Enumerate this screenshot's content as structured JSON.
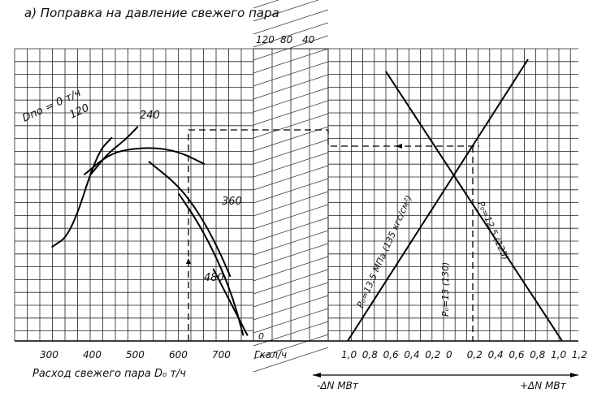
{
  "chart_data": {
    "type": "line",
    "title": "а) Поправка на давление свежего пара",
    "left_panel": {
      "xlabel": "Расход свежего пара D₀ т/ч",
      "x_ticks": [
        300,
        400,
        500,
        600,
        700
      ],
      "series": [
        {
          "name": "Dпо = 0 т/ч",
          "label": "Dпо = 0 т/ч",
          "points": [
            [
              395,
              0.62
            ],
            [
              435,
              0.7
            ],
            [
              475,
              0.75
            ],
            [
              505,
              0.8
            ]
          ]
        },
        {
          "name": "120",
          "label": "120",
          "points": [
            [
              305,
              0.35
            ],
            [
              350,
              0.4
            ],
            [
              410,
              0.7
            ],
            [
              445,
              0.76
            ]
          ]
        },
        {
          "name": "240",
          "label": "240",
          "points": [
            [
              380,
              0.62
            ],
            [
              440,
              0.7
            ],
            [
              500,
              0.72
            ],
            [
              560,
              0.72
            ],
            [
              610,
              0.7
            ],
            [
              660,
              0.66
            ]
          ]
        },
        {
          "name": "360",
          "label": "360",
          "points": [
            [
              530,
              0.67
            ],
            [
              600,
              0.58
            ],
            [
              650,
              0.47
            ],
            [
              690,
              0.35
            ],
            [
              720,
              0.24
            ]
          ]
        },
        {
          "name": "480",
          "label": "480",
          "points": [
            [
              600,
              0.55
            ],
            [
              650,
              0.43
            ],
            [
              700,
              0.27
            ],
            [
              730,
              0.14
            ],
            [
              750,
              0.02
            ]
          ]
        }
      ],
      "extra_line": {
        "points": [
          [
            680,
            0.27
          ],
          [
            760,
            0.02
          ]
        ]
      }
    },
    "middle_panel": {
      "xlabel": "Гкал/ч",
      "top_labels": [
        "120",
        "80",
        "40"
      ],
      "bottom_label": "0"
    },
    "right_panel": {
      "x_ticks": [
        "1,0",
        "0,8",
        "0,6",
        "0,4",
        "0,2",
        "0",
        "0,2",
        "0,4",
        "0,6",
        "0,8",
        "1,0",
        "1,2"
      ],
      "x_axis_left_label": "-ΔN МВт",
      "x_axis_right_label": "+ΔN МВт",
      "lines": [
        {
          "name": "P₀ = 13,5 МПа (135 кгс/см²)",
          "label": "P₀=13,5 МПа (135 кгс/см²)"
        },
        {
          "name": "P₀ = 12,5 (125)",
          "label": "P₀=12,5 (125)"
        },
        {
          "name": "P₀ = 13 (130)",
          "label": "P₀=13 (130)"
        }
      ]
    },
    "grid": true
  }
}
